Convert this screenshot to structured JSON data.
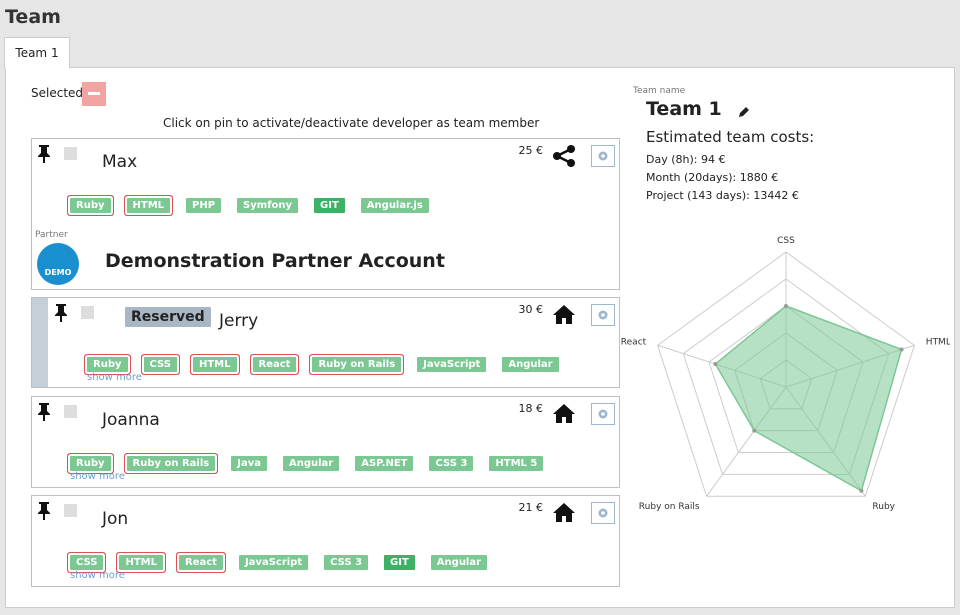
{
  "header": {
    "title": "Team",
    "tab": "Team 1"
  },
  "selection": {
    "label": "Selected:"
  },
  "hint": "Click on pin to activate/deactivate developer as team member",
  "developers": [
    {
      "name": "Max",
      "rate": "25 €",
      "icon": "share",
      "tags": [
        {
          "label": "Ruby",
          "matched": true
        },
        {
          "label": "HTML",
          "matched": true
        },
        {
          "label": "PHP"
        },
        {
          "label": "Symfony"
        },
        {
          "label": "GIT",
          "strong": true
        },
        {
          "label": "Angular.js"
        }
      ],
      "partner": {
        "label": "Partner",
        "logo": "DEMO",
        "name": "Demonstration Partner Account"
      }
    },
    {
      "name": "Jerry",
      "rate": "30 €",
      "icon": "home",
      "reserved": "Reserved",
      "tags": [
        {
          "label": "Ruby",
          "matched": true
        },
        {
          "label": "CSS",
          "matched": true
        },
        {
          "label": "HTML",
          "matched": true
        },
        {
          "label": "React",
          "matched": true
        },
        {
          "label": "Ruby on Rails",
          "matched": true
        },
        {
          "label": "JavaScript"
        },
        {
          "label": "Angular"
        }
      ],
      "more": "show more"
    },
    {
      "name": "Joanna",
      "rate": "18 €",
      "icon": "home",
      "tags": [
        {
          "label": "Ruby",
          "matched": true
        },
        {
          "label": "Ruby on Rails",
          "matched": true
        },
        {
          "label": "Java"
        },
        {
          "label": "Angular"
        },
        {
          "label": "ASP.NET"
        },
        {
          "label": "CSS 3"
        },
        {
          "label": "HTML 5"
        }
      ],
      "more": "show more"
    },
    {
      "name": "Jon",
      "rate": "21 €",
      "icon": "home",
      "tags": [
        {
          "label": "CSS",
          "matched": true
        },
        {
          "label": "HTML",
          "matched": true
        },
        {
          "label": "React",
          "matched": true
        },
        {
          "label": "JavaScript"
        },
        {
          "label": "CSS 3"
        },
        {
          "label": "GIT",
          "strong": true
        },
        {
          "label": "Angular"
        }
      ],
      "more": "show more"
    }
  ],
  "team": {
    "name_label": "Team name",
    "name": "Team 1",
    "costs_title": "Estimated team costs:",
    "costs": [
      "Day (8h): 94 €",
      "Month (20days): 1880 €",
      "Project (143 days): 13442 €"
    ]
  },
  "skills_chart": {
    "type": "radar",
    "categories": [
      "CSS",
      "HTML",
      "Ruby",
      "Ruby on Rails",
      "React"
    ],
    "values": [
      60,
      90,
      95,
      40,
      55
    ],
    "rlim": [
      0,
      100
    ],
    "rticks": [
      20,
      40,
      60,
      80,
      100
    ],
    "color": "#7cc893"
  }
}
